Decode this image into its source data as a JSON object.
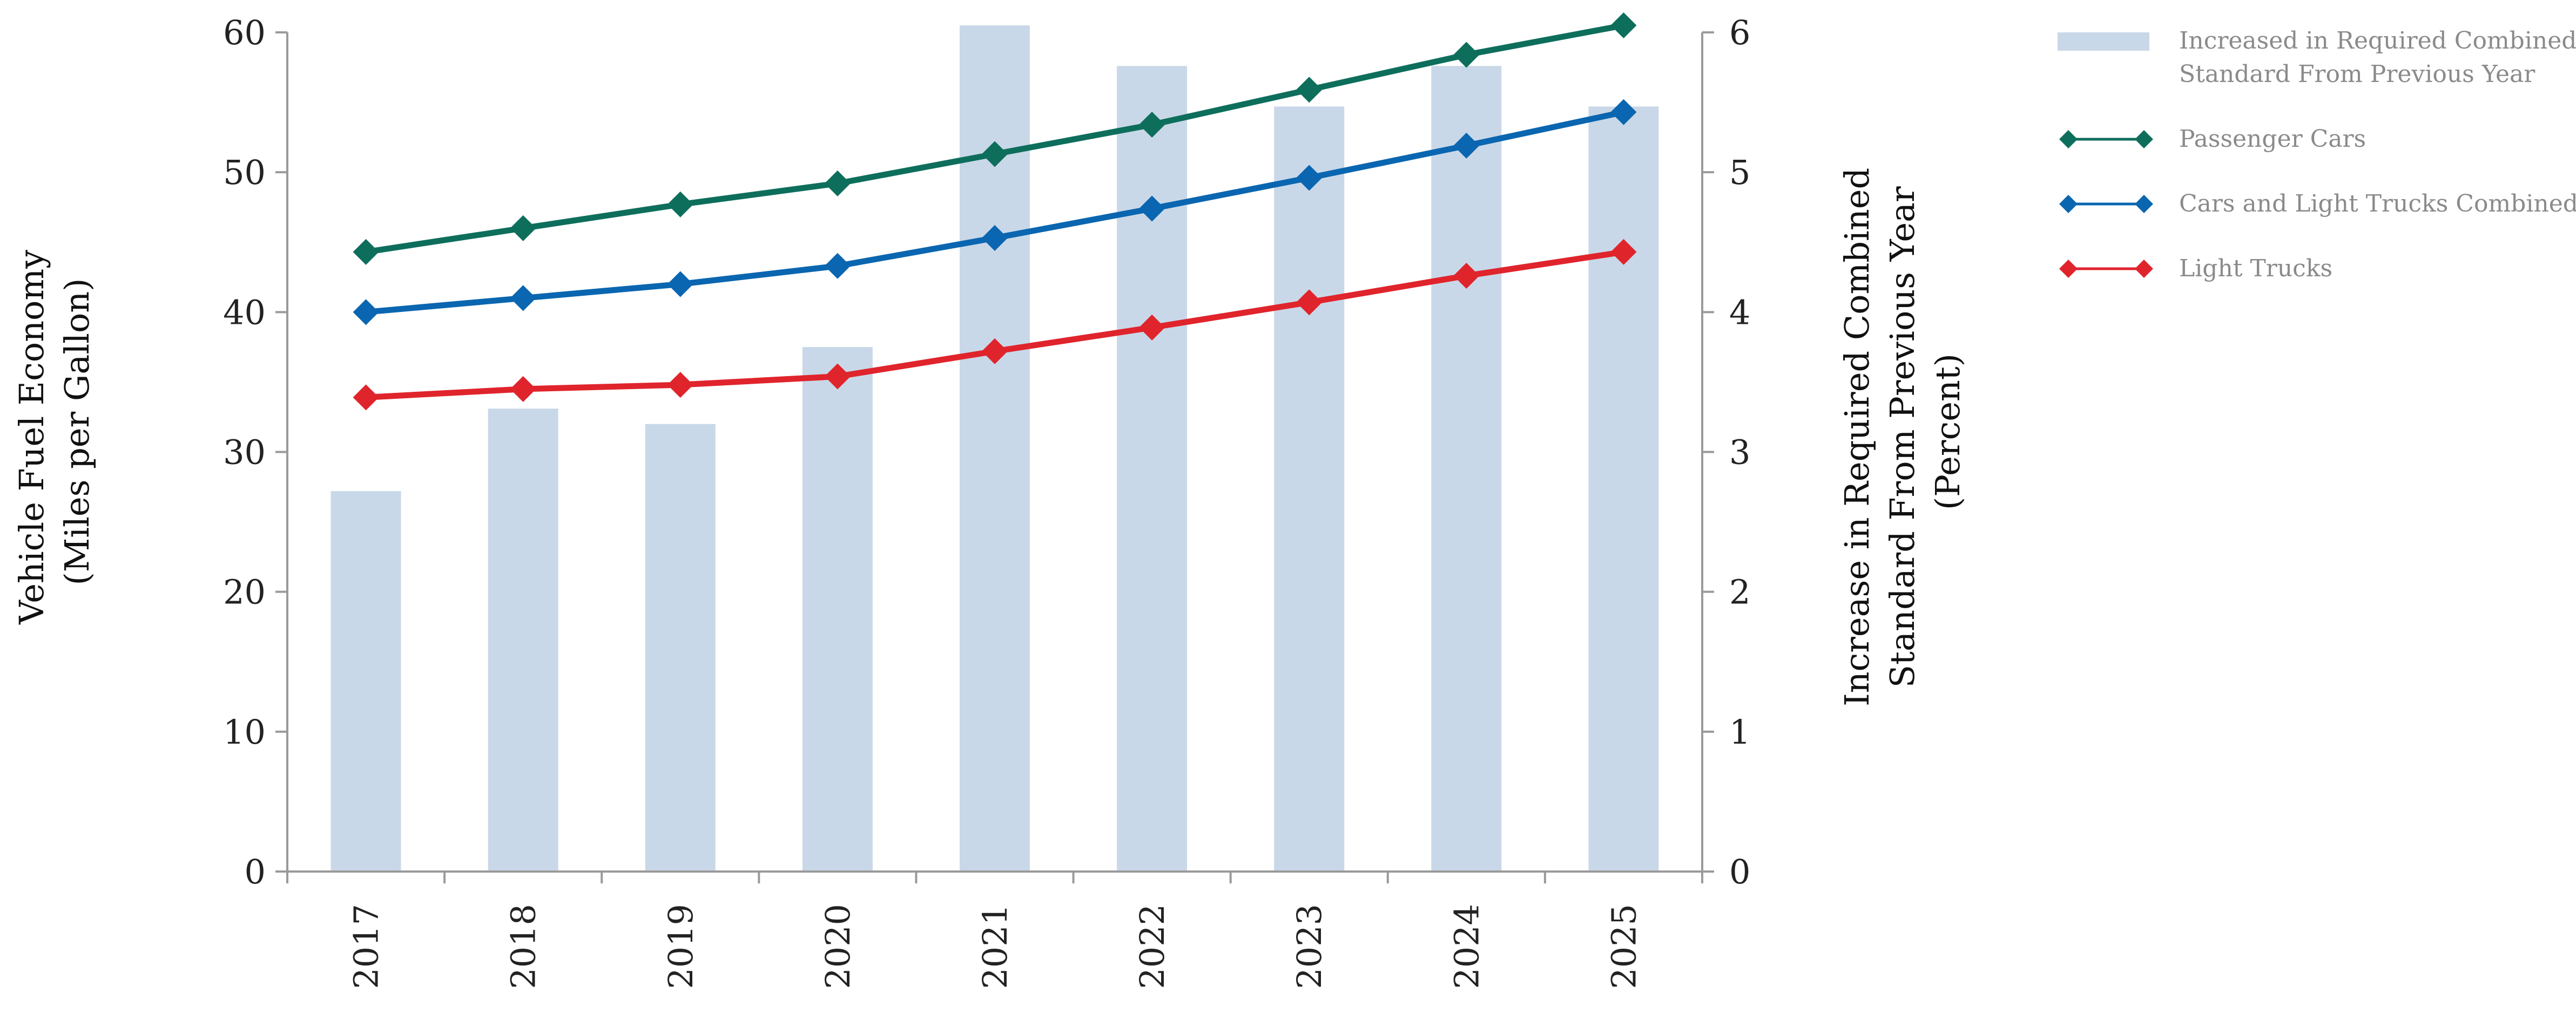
{
  "chart_data": {
    "type": "bar+line",
    "categories": [
      "2017",
      "2018",
      "2019",
      "2020",
      "2021",
      "2022",
      "2023",
      "2024",
      "2025"
    ],
    "left_axis": {
      "label_lines": [
        "Vehicle Fuel Economy",
        "(Miles per Gallon)"
      ],
      "ticks": [
        "0",
        "10",
        "20",
        "30",
        "40",
        "50",
        "60"
      ],
      "range": [
        0,
        60
      ]
    },
    "right_axis": {
      "label_lines": [
        "Increase in Required Combined",
        "Standard From Previous Year",
        "(Percent)"
      ],
      "ticks": [
        "0",
        "1",
        "2",
        "3",
        "4",
        "5",
        "6"
      ],
      "range": [
        0,
        6
      ]
    },
    "bars": {
      "name": "Increased in Required Combined Standard From Previous Year",
      "legend_lines": [
        "Increased in Required Combined",
        "Standard From Previous Year"
      ],
      "axis": "right",
      "color": "#c9d8e8",
      "values": [
        2.72,
        3.31,
        3.2,
        3.75,
        6.05,
        5.76,
        5.47,
        5.76,
        5.47
      ]
    },
    "series": [
      {
        "name": "Passenger Cars",
        "axis": "left",
        "color": "#0e6e5c",
        "values": [
          44.3,
          46.0,
          47.7,
          49.2,
          51.3,
          53.4,
          55.9,
          58.4,
          60.5
        ]
      },
      {
        "name": "Cars and Light Trucks Combined",
        "axis": "left",
        "color": "#0a66b0",
        "values": [
          40.0,
          41.0,
          42.0,
          43.3,
          45.3,
          47.4,
          49.6,
          51.9,
          54.3
        ]
      },
      {
        "name": "Light Trucks",
        "axis": "left",
        "color": "#e0242c",
        "values": [
          33.9,
          34.5,
          34.8,
          35.4,
          37.2,
          38.9,
          40.7,
          42.6,
          44.3
        ]
      }
    ],
    "legend_position": "top-right",
    "grid": false
  }
}
